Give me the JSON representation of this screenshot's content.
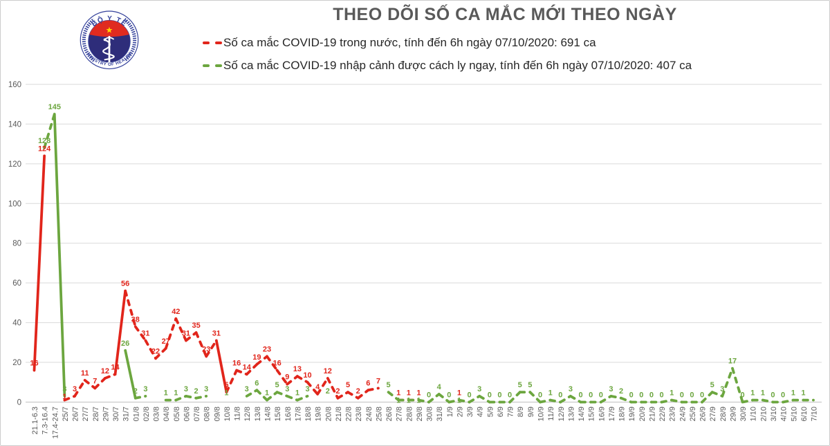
{
  "logo": {
    "top_text": "BỘ Y TẾ",
    "bottom_text": "MINISTRY OF HEALTH"
  },
  "colors": {
    "red_series": "#e1251b",
    "green_series": "#6ca63f",
    "axis_text": "#595959",
    "gridline": "#d9d9d9",
    "axis_line": "#bfbfbf",
    "title_text": "#595959"
  },
  "chart_data": {
    "type": "line",
    "title": "THEO DÕI SỐ CA MẮC MỚI THEO NGÀY",
    "line_style": "dashed",
    "grid": true,
    "legend_position": "top",
    "data_labels": true,
    "ylim": [
      0,
      160
    ],
    "ytick_step": 20,
    "categories": [
      "21.1-6.3",
      "7.3-16.4",
      "17.4-24.7",
      "25/7",
      "26/7",
      "27/7",
      "28/7",
      "29/7",
      "30/7",
      "31/7",
      "01/8",
      "02/8",
      "03/8",
      "04/8",
      "05/8",
      "06/8",
      "07/8",
      "08/8",
      "09/8",
      "10/8",
      "11/8",
      "12/8",
      "13/8",
      "14/8",
      "15/8",
      "16/8",
      "17/8",
      "18/8",
      "19/8",
      "20/8",
      "21/8",
      "22/8",
      "23/8",
      "24/8",
      "25/8",
      "26/8",
      "27/8",
      "28/8",
      "29/8",
      "30/8",
      "31/8",
      "1/9",
      "2/9",
      "3/9",
      "4/9",
      "5/9",
      "6/9",
      "7/9",
      "8/9",
      "9/9",
      "10/9",
      "11/9",
      "12/9",
      "13/9",
      "14/9",
      "15/9",
      "16/9",
      "17/9",
      "18/9",
      "19/9",
      "20/9",
      "21/9",
      "22/9",
      "23/9",
      "24/9",
      "25/9",
      "26/9",
      "27/9",
      "28/9",
      "29/9",
      "30/9",
      "1/10",
      "2/10",
      "3/10",
      "4/10",
      "5/10",
      "6/10",
      "7/10"
    ],
    "series": [
      {
        "name": "Số ca mắc COVID-19 trong nước, tính đến 6h ngày 07/10/2020: 691 ca",
        "color": "#e1251b",
        "total": 691,
        "values": [
          16,
          124,
          null,
          1,
          3,
          11,
          7,
          12,
          14,
          56,
          38,
          31,
          22,
          27,
          42,
          31,
          35,
          23,
          31,
          5,
          16,
          14,
          19,
          23,
          16,
          9,
          13,
          10,
          4,
          12,
          2,
          5,
          2,
          6,
          7,
          null,
          1,
          1,
          1,
          null,
          null,
          null,
          1,
          null,
          null,
          null,
          null,
          null,
          null,
          null,
          null,
          null,
          null,
          null,
          null,
          null,
          null,
          null,
          null,
          null,
          null,
          null,
          null,
          null,
          null,
          null,
          null,
          null,
          null,
          null,
          null,
          null,
          null,
          null,
          null,
          null,
          null,
          null
        ]
      },
      {
        "name": "Số ca mắc COVID-19 nhập cảnh được cách ly ngay, tính đến 6h ngày 07/10/2020: 407 ca",
        "color": "#6ca63f",
        "total": 407,
        "hide_label_indices": [
          77
        ],
        "values": [
          null,
          128,
          145,
          3,
          null,
          null,
          null,
          null,
          null,
          26,
          2,
          3,
          null,
          1,
          1,
          3,
          2,
          3,
          null,
          1,
          null,
          3,
          6,
          1,
          5,
          3,
          1,
          3,
          null,
          2,
          null,
          null,
          null,
          null,
          null,
          5,
          1,
          1,
          1,
          0,
          4,
          0,
          1,
          0,
          3,
          0,
          0,
          0,
          5,
          5,
          0,
          1,
          0,
          3,
          0,
          0,
          0,
          3,
          2,
          0,
          0,
          0,
          0,
          1,
          0,
          0,
          0,
          5,
          3,
          17,
          0,
          1,
          1,
          0,
          0,
          1,
          1,
          1
        ]
      }
    ]
  }
}
